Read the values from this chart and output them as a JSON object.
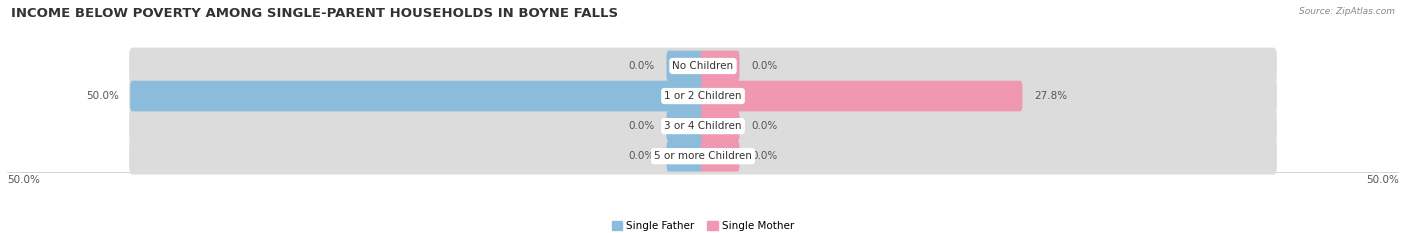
{
  "title": "INCOME BELOW POVERTY AMONG SINGLE-PARENT HOUSEHOLDS IN BOYNE FALLS",
  "source": "Source: ZipAtlas.com",
  "categories": [
    "No Children",
    "1 or 2 Children",
    "3 or 4 Children",
    "5 or more Children"
  ],
  "father_values": [
    0.0,
    50.0,
    0.0,
    0.0
  ],
  "mother_values": [
    0.0,
    27.8,
    0.0,
    0.0
  ],
  "father_color": "#8BBCDB",
  "mother_color": "#F097B2",
  "bar_bg_color": "#DCDCDC",
  "max_val": 50.0,
  "min_bar_display": 3.0,
  "legend_father": "Single Father",
  "legend_mother": "Single Mother",
  "title_fontsize": 9.5,
  "label_fontsize": 7.5,
  "source_fontsize": 6.5,
  "bar_height": 0.62,
  "fig_width": 14.06,
  "fig_height": 2.33,
  "background_color": "#FFFFFF",
  "text_color": "#555555",
  "title_color": "#333333"
}
